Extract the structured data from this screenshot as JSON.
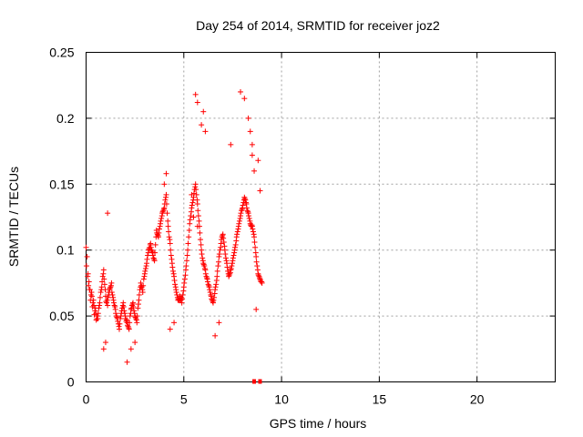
{
  "chart_data": {
    "type": "scatter",
    "title": "Day 254 of 2014, SRMTID for receiver joz2",
    "xlabel": "GPS time / hours",
    "ylabel": "SRMTID / TECUs",
    "xlim": [
      0,
      24
    ],
    "ylim": [
      0,
      0.25
    ],
    "xticks": [
      0,
      5,
      10,
      15,
      20
    ],
    "xtick_labels": [
      "0",
      "5",
      "10",
      "15",
      "20"
    ],
    "yticks": [
      0,
      0.05,
      0.1,
      0.15,
      0.2,
      0.25
    ],
    "ytick_labels": [
      "0",
      "0.05",
      "0.1",
      "0.15",
      "0.2",
      "0.25"
    ],
    "grid": true,
    "marker": "plus",
    "colors": {
      "points": "#ff0000",
      "grid": "#a0a0a0",
      "axes": "#000000"
    },
    "series": [
      {
        "name": "SRMTID",
        "x": [
          0.0,
          0.1,
          0.2,
          0.3,
          0.4,
          0.5,
          0.6,
          0.7,
          0.8,
          0.9,
          1.0,
          1.1,
          1.2,
          1.3,
          1.4,
          1.5,
          1.6,
          1.7,
          1.8,
          1.9,
          2.0,
          2.1,
          2.2,
          2.3,
          2.4,
          2.5,
          2.6,
          2.7,
          2.8,
          2.9,
          3.0,
          3.1,
          3.2,
          3.3,
          3.4,
          3.5,
          3.6,
          3.7,
          3.8,
          3.9,
          4.0,
          4.1,
          4.2,
          4.3,
          4.4,
          4.5,
          4.6,
          4.7,
          4.8,
          4.9,
          5.0,
          5.1,
          5.2,
          5.3,
          5.4,
          5.5,
          5.6,
          5.7,
          5.8,
          5.9,
          6.0,
          6.1,
          6.2,
          6.3,
          6.4,
          6.5,
          6.6,
          6.7,
          6.8,
          6.9,
          7.0,
          7.1,
          7.2,
          7.3,
          7.4,
          7.5,
          7.6,
          7.7,
          7.8,
          7.9,
          8.0,
          8.1,
          8.2,
          8.3,
          8.4,
          8.5,
          8.6,
          8.7,
          8.8,
          8.9,
          9.0,
          0.05,
          0.15,
          0.25,
          0.35,
          0.45,
          0.55,
          0.65,
          0.75,
          0.85,
          0.95,
          1.05,
          1.15,
          1.25,
          1.35,
          1.45,
          1.55,
          1.65,
          1.75,
          1.85,
          1.95,
          2.05,
          2.15,
          2.25,
          2.35,
          2.45,
          2.55,
          2.65,
          2.75,
          2.85,
          2.95,
          3.05,
          3.15,
          3.25,
          3.35,
          3.45,
          3.55,
          3.65,
          3.75,
          3.85,
          3.95,
          4.05,
          4.15,
          4.25,
          4.35,
          4.45,
          4.55,
          4.65,
          4.75,
          4.85,
          4.95,
          5.05,
          5.15,
          5.25,
          5.35,
          5.45,
          5.55,
          5.65,
          5.75,
          5.85,
          5.95,
          6.05,
          6.15,
          6.25,
          6.35,
          6.45,
          6.55,
          6.65,
          6.75,
          6.85,
          6.95,
          7.05,
          7.15,
          7.25,
          7.35,
          7.45,
          7.55,
          7.65,
          7.75,
          7.85,
          7.95,
          8.05,
          8.15,
          8.25,
          8.35,
          8.45,
          8.55,
          8.65,
          8.75,
          8.85,
          8.95,
          0.02,
          0.12,
          0.22,
          0.32,
          0.42,
          0.52,
          0.62,
          0.72,
          0.82,
          0.92,
          1.02,
          1.12,
          1.22,
          1.32,
          1.42,
          1.52,
          1.62,
          1.72,
          1.82,
          1.92,
          2.02,
          2.12,
          2.22,
          2.32,
          2.42,
          2.52,
          2.62,
          2.72,
          2.82,
          2.92,
          3.02,
          3.12,
          3.22,
          3.32,
          3.42,
          3.52,
          3.62,
          3.72,
          3.82,
          3.92,
          4.02,
          4.12,
          4.22,
          4.32,
          4.42,
          4.52,
          4.62,
          4.72,
          4.82,
          4.92,
          5.02,
          5.12,
          5.22,
          5.32,
          5.42,
          5.52,
          5.62,
          5.72,
          5.82,
          5.92,
          6.02,
          6.12,
          6.22,
          6.32,
          6.42,
          6.52,
          6.62,
          6.72,
          6.82,
          6.92,
          7.02,
          7.12,
          7.22,
          7.32,
          7.42,
          7.52,
          7.62,
          7.72,
          7.82,
          7.92,
          8.02,
          8.12,
          8.22,
          8.32,
          8.42,
          8.52,
          8.62,
          8.72,
          8.82,
          8.92,
          0.08,
          0.18,
          0.28,
          0.38,
          0.48,
          0.58,
          0.68,
          0.78,
          0.88,
          0.98,
          1.08,
          1.18,
          1.28,
          1.38,
          1.48,
          1.58,
          1.68,
          1.78,
          1.88,
          1.98,
          2.08,
          2.18,
          2.28,
          2.38,
          2.48,
          2.58,
          2.68,
          2.78,
          2.88,
          2.98,
          3.08,
          3.18,
          3.28,
          3.38,
          3.48,
          3.58,
          3.68,
          3.78,
          3.88,
          3.98,
          4.08,
          4.18,
          4.28,
          4.38,
          4.48,
          4.58,
          4.68,
          4.78,
          4.88,
          4.98,
          5.08,
          5.18,
          5.28,
          5.38,
          5.48,
          5.58,
          5.68,
          5.78,
          5.88,
          5.98,
          6.08,
          6.18,
          6.28,
          6.38,
          6.48,
          6.58,
          6.68,
          6.78,
          6.88,
          6.98,
          7.08,
          7.18,
          7.28,
          7.38,
          7.48,
          7.58,
          7.68,
          7.78,
          7.88,
          7.98,
          8.08,
          8.18,
          8.28,
          8.38,
          8.48,
          8.58,
          8.68,
          8.78,
          8.88,
          8.98,
          5.6,
          5.7,
          5.9,
          6.0,
          6.1,
          7.9,
          8.1,
          8.3,
          8.4,
          8.5,
          1.1,
          4.1,
          4.0,
          5.4,
          5.5,
          5.7,
          8.8,
          8.9,
          2.1,
          2.3,
          2.5,
          0.9,
          1.0,
          4.3,
          4.5,
          6.6,
          6.8,
          7.4,
          8.5,
          8.6,
          8.7
        ],
        "y": [
          0.102,
          0.082,
          0.07,
          0.065,
          0.058,
          0.052,
          0.048,
          0.06,
          0.072,
          0.085,
          0.065,
          0.058,
          0.07,
          0.075,
          0.062,
          0.055,
          0.048,
          0.04,
          0.052,
          0.06,
          0.05,
          0.045,
          0.04,
          0.055,
          0.06,
          0.05,
          0.045,
          0.062,
          0.075,
          0.068,
          0.082,
          0.09,
          0.1,
          0.105,
          0.098,
          0.092,
          0.115,
          0.11,
          0.12,
          0.128,
          0.132,
          0.142,
          0.118,
          0.105,
          0.09,
          0.08,
          0.07,
          0.062,
          0.065,
          0.06,
          0.072,
          0.085,
          0.1,
          0.12,
          0.132,
          0.14,
          0.15,
          0.135,
          0.118,
          0.1,
          0.09,
          0.085,
          0.078,
          0.072,
          0.065,
          0.06,
          0.07,
          0.08,
          0.095,
          0.105,
          0.112,
          0.1,
          0.09,
          0.08,
          0.085,
          0.092,
          0.1,
          0.11,
          0.118,
          0.126,
          0.132,
          0.14,
          0.135,
          0.128,
          0.12,
          0.118,
          0.11,
          0.095,
          0.082,
          0.078,
          0.075,
          0.095,
          0.076,
          0.066,
          0.06,
          0.054,
          0.048,
          0.056,
          0.068,
          0.08,
          0.074,
          0.06,
          0.068,
          0.072,
          0.066,
          0.058,
          0.05,
          0.044,
          0.048,
          0.056,
          0.054,
          0.046,
          0.042,
          0.05,
          0.058,
          0.054,
          0.048,
          0.056,
          0.07,
          0.072,
          0.078,
          0.086,
          0.096,
          0.102,
          0.1,
          0.094,
          0.104,
          0.112,
          0.116,
          0.124,
          0.13,
          0.138,
          0.128,
          0.11,
          0.096,
          0.084,
          0.074,
          0.066,
          0.062,
          0.062,
          0.066,
          0.078,
          0.092,
          0.11,
          0.126,
          0.136,
          0.146,
          0.142,
          0.126,
          0.108,
          0.094,
          0.088,
          0.08,
          0.074,
          0.068,
          0.062,
          0.064,
          0.074,
          0.088,
          0.1,
          0.11,
          0.106,
          0.094,
          0.084,
          0.082,
          0.088,
          0.096,
          0.104,
          0.114,
          0.122,
          0.13,
          0.136,
          0.138,
          0.13,
          0.124,
          0.118,
          0.114,
          0.102,
          0.088,
          0.08,
          0.076,
          0.088,
          0.073,
          0.062,
          0.057,
          0.051,
          0.047,
          0.052,
          0.064,
          0.076,
          0.078,
          0.061,
          0.064,
          0.071,
          0.068,
          0.06,
          0.052,
          0.046,
          0.044,
          0.054,
          0.057,
          0.048,
          0.043,
          0.045,
          0.056,
          0.057,
          0.049,
          0.05,
          0.066,
          0.073,
          0.073,
          0.084,
          0.093,
          0.101,
          0.102,
          0.096,
          0.098,
          0.113,
          0.113,
          0.122,
          0.129,
          0.135,
          0.135,
          0.114,
          0.1,
          0.087,
          0.077,
          0.068,
          0.063,
          0.063,
          0.063,
          0.075,
          0.088,
          0.105,
          0.123,
          0.134,
          0.143,
          0.146,
          0.13,
          0.113,
          0.097,
          0.089,
          0.082,
          0.076,
          0.07,
          0.063,
          0.062,
          0.072,
          0.084,
          0.097,
          0.108,
          0.109,
          0.097,
          0.087,
          0.081,
          0.086,
          0.094,
          0.102,
          0.112,
          0.12,
          0.128,
          0.134,
          0.139,
          0.132,
          0.126,
          0.119,
          0.116,
          0.106,
          0.091,
          0.081,
          0.077,
          0.08,
          0.07,
          0.068,
          0.062,
          0.056,
          0.05,
          0.058,
          0.07,
          0.082,
          0.07,
          0.062,
          0.066,
          0.073,
          0.064,
          0.057,
          0.049,
          0.042,
          0.05,
          0.058,
          0.052,
          0.047,
          0.041,
          0.052,
          0.059,
          0.052,
          0.047,
          0.059,
          0.072,
          0.07,
          0.08,
          0.088,
          0.098,
          0.104,
          0.099,
          0.093,
          0.11,
          0.111,
          0.118,
          0.126,
          0.131,
          0.14,
          0.122,
          0.108,
          0.093,
          0.082,
          0.072,
          0.064,
          0.062,
          0.064,
          0.069,
          0.081,
          0.096,
          0.115,
          0.129,
          0.138,
          0.148,
          0.138,
          0.122,
          0.104,
          0.092,
          0.086,
          0.079,
          0.073,
          0.066,
          0.061,
          0.067,
          0.077,
          0.091,
          0.102,
          0.111,
          0.103,
          0.092,
          0.082,
          0.083,
          0.09,
          0.098,
          0.107,
          0.116,
          0.124,
          0.131,
          0.138,
          0.136,
          0.129,
          0.122,
          0.119,
          0.112,
          0.098,
          0.085,
          0.079,
          0.076,
          0.218,
          0.212,
          0.195,
          0.205,
          0.19,
          0.22,
          0.215,
          0.2,
          0.19,
          0.18,
          0.128,
          0.158,
          0.15,
          0.142,
          0.125,
          0.118,
          0.168,
          0.145,
          0.015,
          0.025,
          0.03,
          0.025,
          0.03,
          0.04,
          0.045,
          0.035,
          0.045,
          0.18,
          0.172,
          0.16,
          0.055
        ]
      }
    ],
    "axis_markers": [
      8.6,
      8.9
    ]
  }
}
